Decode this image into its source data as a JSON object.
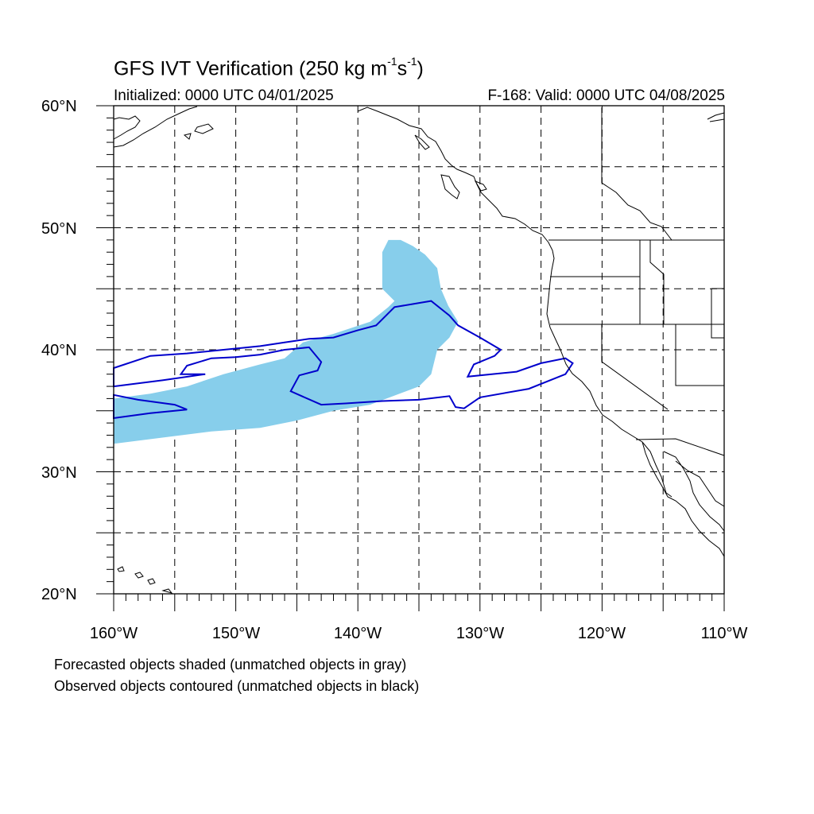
{
  "title": {
    "main": "GFS IVT Verification (250 kg m",
    "exp1": "-1",
    "mid": "s",
    "exp2": "-1",
    "close": ")"
  },
  "initialized": "Initialized: 0000 UTC 04/01/2025",
  "valid": "F-168: Valid: 0000 UTC 04/08/2025",
  "latitude_labels": [
    "60°N",
    "50°N",
    "40°N",
    "30°N",
    "20°N"
  ],
  "longitude_labels": [
    "160°W",
    "150°W",
    "140°W",
    "130°W",
    "120°W",
    "110°W"
  ],
  "footnotes": [
    "Forecasted objects shaded (unmatched objects in gray)",
    "Observed objects contoured (unmatched objects in black)"
  ],
  "map_extent": {
    "lon_min": -160,
    "lon_max": -110,
    "lat_min": 20,
    "lat_max": 60
  },
  "colors": {
    "forecast_fill": "#87ceeb",
    "observed_contour": "#0000cc",
    "coast": "#000000",
    "grid": "#000000"
  },
  "forecast_object": [
    [
      -160,
      36.0
    ],
    [
      -157,
      36.4
    ],
    [
      -154,
      37.0
    ],
    [
      -151,
      38.0
    ],
    [
      -148,
      38.8
    ],
    [
      -146,
      39.3
    ],
    [
      -144.5,
      40.6
    ],
    [
      -142,
      41.3
    ],
    [
      -139,
      42.3
    ],
    [
      -137.5,
      43.5
    ],
    [
      -137,
      44.0
    ],
    [
      -138,
      45.0
    ],
    [
      -138,
      46.5
    ],
    [
      -138,
      48.0
    ],
    [
      -137.5,
      49.0
    ],
    [
      -136.5,
      49.0
    ],
    [
      -135.5,
      48.5
    ],
    [
      -134.5,
      47.8
    ],
    [
      -133.5,
      46.7
    ],
    [
      -133.2,
      45.0
    ],
    [
      -132.6,
      43.6
    ],
    [
      -131.8,
      42.3
    ],
    [
      -132.5,
      41.0
    ],
    [
      -133.5,
      40.0
    ],
    [
      -134,
      38.0
    ],
    [
      -135,
      37.0
    ],
    [
      -139,
      35.5
    ],
    [
      -142,
      35.0
    ],
    [
      -145,
      34.2
    ],
    [
      -148,
      33.6
    ],
    [
      -152,
      33.3
    ],
    [
      -156,
      32.8
    ],
    [
      -160,
      32.3
    ]
  ],
  "observed_objects": [
    [
      [
        -160,
        38.5
      ],
      [
        -157,
        39.5
      ],
      [
        -154,
        39.7
      ],
      [
        -151,
        40.0
      ],
      [
        -148,
        40.3
      ],
      [
        -146,
        40.6
      ],
      [
        -144,
        40.9
      ],
      [
        -142,
        41.0
      ],
      [
        -140,
        41.6
      ],
      [
        -138.5,
        42.0
      ],
      [
        -137,
        43.5
      ],
      [
        -134,
        44.0
      ],
      [
        -132.5,
        42.8
      ],
      [
        -131.8,
        42.0
      ],
      [
        -130,
        41.0
      ],
      [
        -128.3,
        40.0
      ],
      [
        -128.8,
        39.5
      ],
      [
        -130.5,
        38.8
      ],
      [
        -131,
        37.8
      ],
      [
        -127,
        38.2
      ],
      [
        -125,
        38.9
      ],
      [
        -123,
        39.3
      ],
      [
        -122.4,
        38.9
      ],
      [
        -123,
        38.0
      ],
      [
        -126,
        36.8
      ],
      [
        -130,
        36.1
      ],
      [
        -131.3,
        35.2
      ],
      [
        -132,
        35.3
      ],
      [
        -132.5,
        36.2
      ],
      [
        -135,
        35.9
      ],
      [
        -138,
        35.8
      ],
      [
        -141,
        35.6
      ],
      [
        -143,
        35.5
      ],
      [
        -145.5,
        36.6
      ],
      [
        -144.8,
        37.9
      ],
      [
        -143.3,
        38.3
      ],
      [
        -143,
        39.0
      ],
      [
        -144,
        40.2
      ],
      [
        -146,
        40.0
      ],
      [
        -148,
        39.6
      ],
      [
        -150,
        39.4
      ],
      [
        -152,
        39.3
      ],
      [
        -154,
        38.7
      ],
      [
        -154.5,
        38.0
      ],
      [
        -152.5,
        38.0
      ],
      [
        -156,
        37.5
      ],
      [
        -160,
        37.0
      ]
    ],
    [
      [
        -160,
        36.3
      ],
      [
        -158,
        35.9
      ],
      [
        -155,
        35.5
      ],
      [
        -154,
        35.1
      ],
      [
        -157,
        34.8
      ],
      [
        -160,
        34.4
      ]
    ]
  ]
}
